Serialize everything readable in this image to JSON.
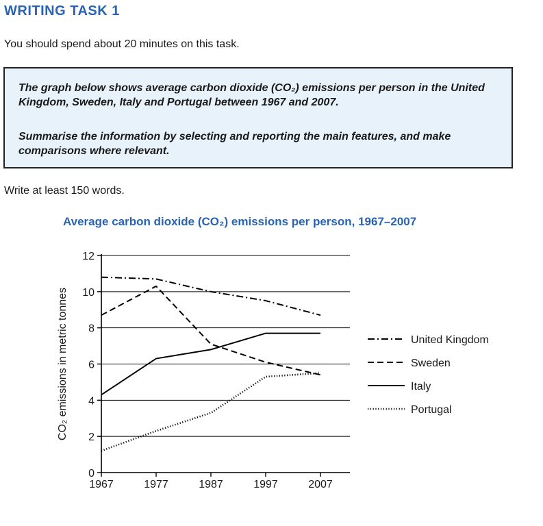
{
  "task": {
    "heading": "WRITING TASK 1",
    "intro": "You should spend about 20 minutes on this task.",
    "prompt_1": "The graph below shows average carbon dioxide (CO₂) emissions per person in the United Kingdom, Sweden, Italy and Portugal between 1967 and 2007.",
    "prompt_2": "Summarise the information by selecting and reporting the main features, and make comparisons where relevant.",
    "instruction": "Write at least 150 words."
  },
  "chart_data": {
    "type": "line",
    "title": "Average carbon dioxide (CO₂) emissions per person, 1967–2007",
    "xlabel": "",
    "ylabel": "CO₂ emissions in metric tonnes",
    "x": [
      1967,
      1977,
      1987,
      1997,
      2007
    ],
    "x_ticks": [
      "1967",
      "1977",
      "1987",
      "1997",
      "2007"
    ],
    "y_ticks": [
      "0",
      "2",
      "4",
      "6",
      "8",
      "10",
      "12"
    ],
    "ylim": [
      0,
      12
    ],
    "grid": "horizontal",
    "legend_position": "right",
    "series": [
      {
        "name": "United Kingdom",
        "style": "dash-dot",
        "values": [
          10.8,
          10.7,
          10.0,
          9.5,
          8.7
        ]
      },
      {
        "name": "Sweden",
        "style": "dashed",
        "values": [
          8.7,
          10.3,
          7.1,
          6.1,
          5.4
        ]
      },
      {
        "name": "Italy",
        "style": "solid",
        "values": [
          4.3,
          6.3,
          6.8,
          7.7,
          7.7
        ]
      },
      {
        "name": "Portugal",
        "style": "dotted",
        "values": [
          1.2,
          2.3,
          3.3,
          5.3,
          5.5
        ]
      }
    ],
    "line_color": "#000000",
    "grid_color": "#000000"
  }
}
